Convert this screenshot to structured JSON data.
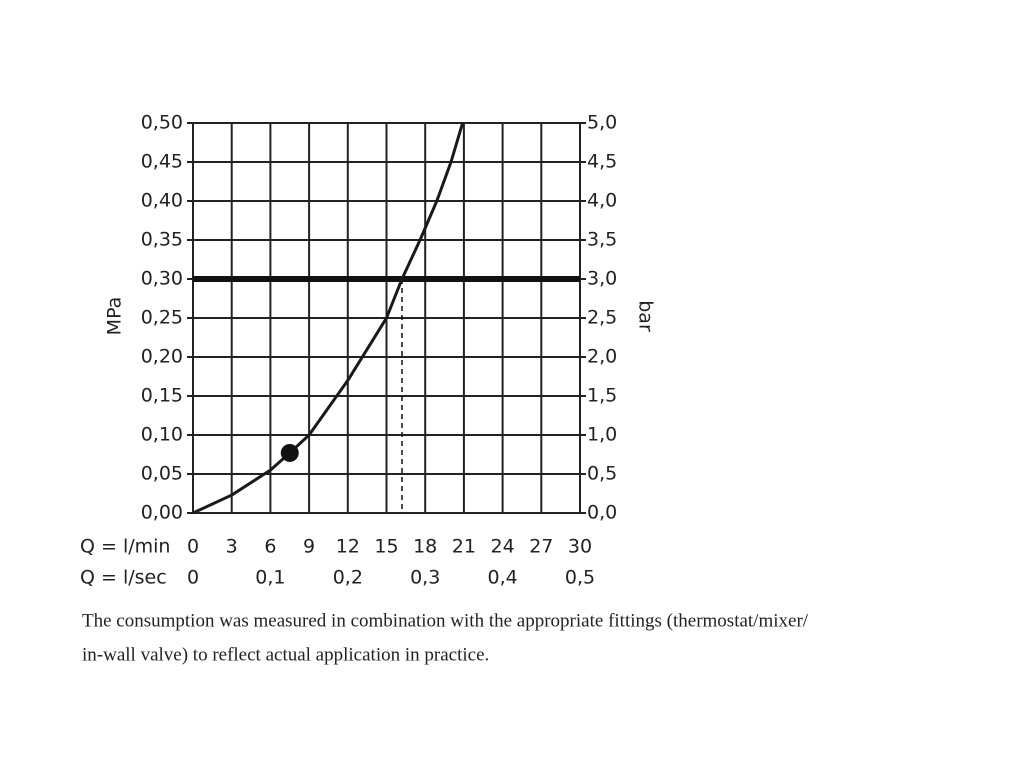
{
  "chart_data": {
    "type": "line",
    "y_label": "MPa",
    "y2_label": "bar",
    "x_label": "Q = l/min",
    "x2_label": "Q = l/sec",
    "x": [
      0,
      3,
      6,
      7.5,
      9,
      12,
      15,
      16.2,
      17.6,
      18.9,
      20,
      20.9
    ],
    "series": [
      {
        "color": "#1a1a1a",
        "values": [
          0,
          0.023,
          0.055,
          0.077,
          0.1,
          0.17,
          0.25,
          0.3,
          0.35,
          0.4,
          0.45,
          0.5
        ]
      }
    ],
    "xlim": [
      0,
      30
    ],
    "xticks": [
      0,
      3,
      6,
      9,
      12,
      15,
      18,
      21,
      24,
      27,
      30
    ],
    "x2lim": [
      0,
      0.5
    ],
    "x2ticks": [
      0,
      {
        "value": 0.1,
        "label": "0,1"
      },
      {
        "value": 0.2,
        "label": "0,2"
      },
      {
        "value": 0.3,
        "label": "0,3"
      },
      {
        "value": 0.4,
        "label": "0,4"
      },
      {
        "value": 0.5,
        "label": "0,5"
      }
    ],
    "ylim": [
      0,
      0.5
    ],
    "yticks": [
      {
        "value": 0,
        "label": "0,00"
      },
      {
        "value": 0.05,
        "label": "0,05"
      },
      {
        "value": 0.1,
        "label": "0,10"
      },
      {
        "value": 0.15,
        "label": "0,15"
      },
      {
        "value": 0.2,
        "label": "0,20"
      },
      {
        "value": 0.25,
        "label": "0,25"
      },
      {
        "value": 0.3,
        "label": "0,30"
      },
      {
        "value": 0.35,
        "label": "0,35"
      },
      {
        "value": 0.4,
        "label": "0,40"
      },
      {
        "value": 0.45,
        "label": "0,45"
      },
      {
        "value": 0.5,
        "label": "0,50"
      }
    ],
    "y2lim": [
      0,
      5
    ],
    "y2ticks": [
      {
        "value": 0,
        "label": "0,0"
      },
      {
        "value": 0.5,
        "label": "0,5"
      },
      {
        "value": 1,
        "label": "1,0"
      },
      {
        "value": 1.5,
        "label": "1,5"
      },
      {
        "value": 2,
        "label": "2,0"
      },
      {
        "value": 2.5,
        "label": "2,5"
      },
      {
        "value": 3,
        "label": "3,0"
      },
      {
        "value": 3.5,
        "label": "3,5"
      },
      {
        "value": 4,
        "label": "4,0"
      },
      {
        "value": 4.5,
        "label": "4,5"
      },
      {
        "value": 5,
        "label": "5,0"
      }
    ],
    "grid": true,
    "reference_line": {
      "y": 0.3
    },
    "intersection": {
      "x": 16.2,
      "y": 0.3
    },
    "marker": {
      "x": 7.5,
      "y": 0.077
    },
    "caption": [
      "The consumption was measured in combination with the appropriate fittings (thermostat/mixer/",
      "in-wall valve) to reflect actual application in practice."
    ]
  }
}
